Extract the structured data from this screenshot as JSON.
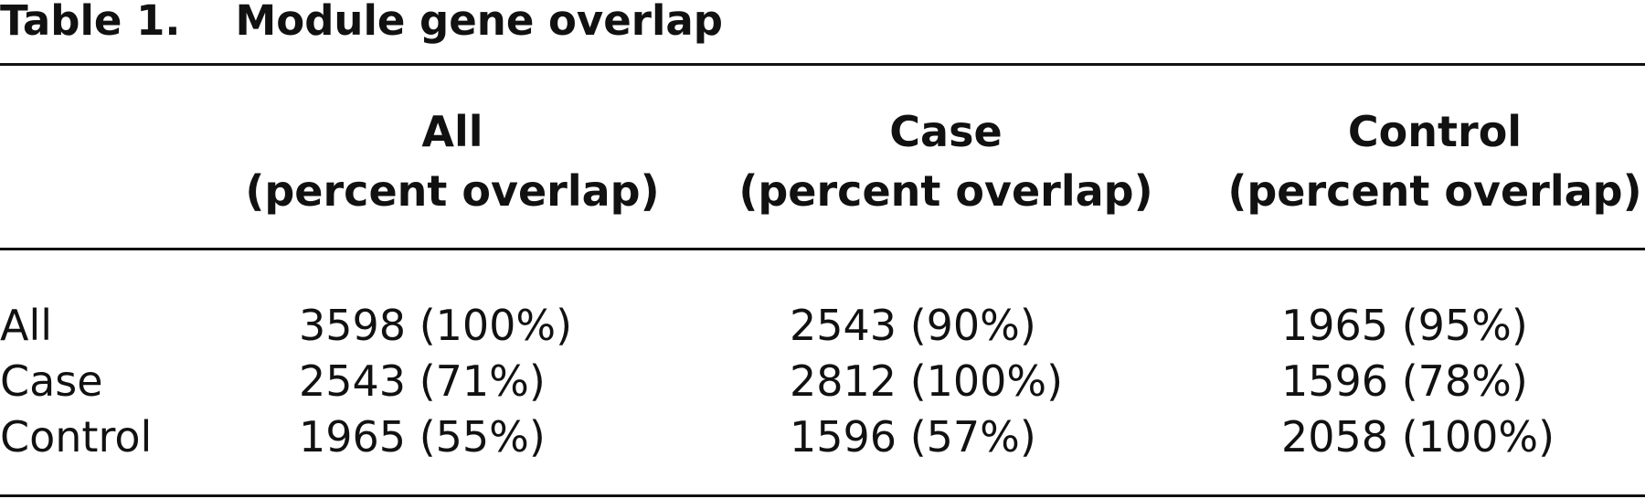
{
  "table": {
    "caption_label": "Table 1.",
    "caption_title": "Module gene overlap",
    "columns": [
      {
        "name": "All",
        "sub": "(percent overlap)"
      },
      {
        "name": "Case",
        "sub": "(percent overlap)"
      },
      {
        "name": "Control",
        "sub": "(percent overlap)"
      }
    ],
    "rows": [
      {
        "label": "All",
        "cells": [
          "3598 (100%)",
          "2543 (90%)",
          "1965 (95%)"
        ]
      },
      {
        "label": "Case",
        "cells": [
          "2543 (71%)",
          "2812 (100%)",
          "1596 (78%)"
        ]
      },
      {
        "label": "Control",
        "cells": [
          "1965 (55%)",
          "1596 (57%)",
          "2058 (100%)"
        ]
      }
    ]
  }
}
